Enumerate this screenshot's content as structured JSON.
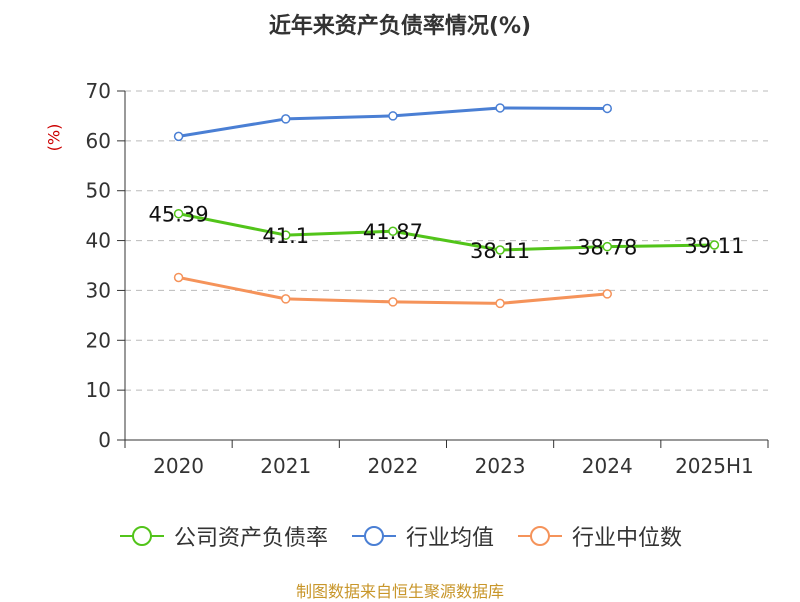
{
  "chart_data": {
    "type": "line",
    "title": "近年来资产负债率情况(%)",
    "ylabel": "(%)",
    "xlabel": "",
    "categories": [
      "2020",
      "2021",
      "2022",
      "2023",
      "2024",
      "2025H1"
    ],
    "ylim": [
      0,
      70
    ],
    "yticks": [
      0,
      10,
      20,
      30,
      40,
      50,
      60,
      70
    ],
    "grid": true,
    "legend_position": "bottom",
    "series": [
      {
        "name": "公司资产负债率",
        "color": "#52c41a",
        "values": [
          45.39,
          41.1,
          41.87,
          38.11,
          38.78,
          39.11
        ],
        "labels": [
          "45.39",
          "41.1",
          "41.87",
          "38.11",
          "38.78",
          "39.11"
        ]
      },
      {
        "name": "行业均值",
        "color": "#4a7fd4",
        "values": [
          60.9,
          64.4,
          65.0,
          66.6,
          66.5,
          null
        ]
      },
      {
        "name": "行业中位数",
        "color": "#f5935a",
        "values": [
          32.6,
          28.3,
          27.7,
          27.4,
          29.3,
          null
        ]
      }
    ]
  },
  "source": "制图数据来自恒生聚源数据库"
}
